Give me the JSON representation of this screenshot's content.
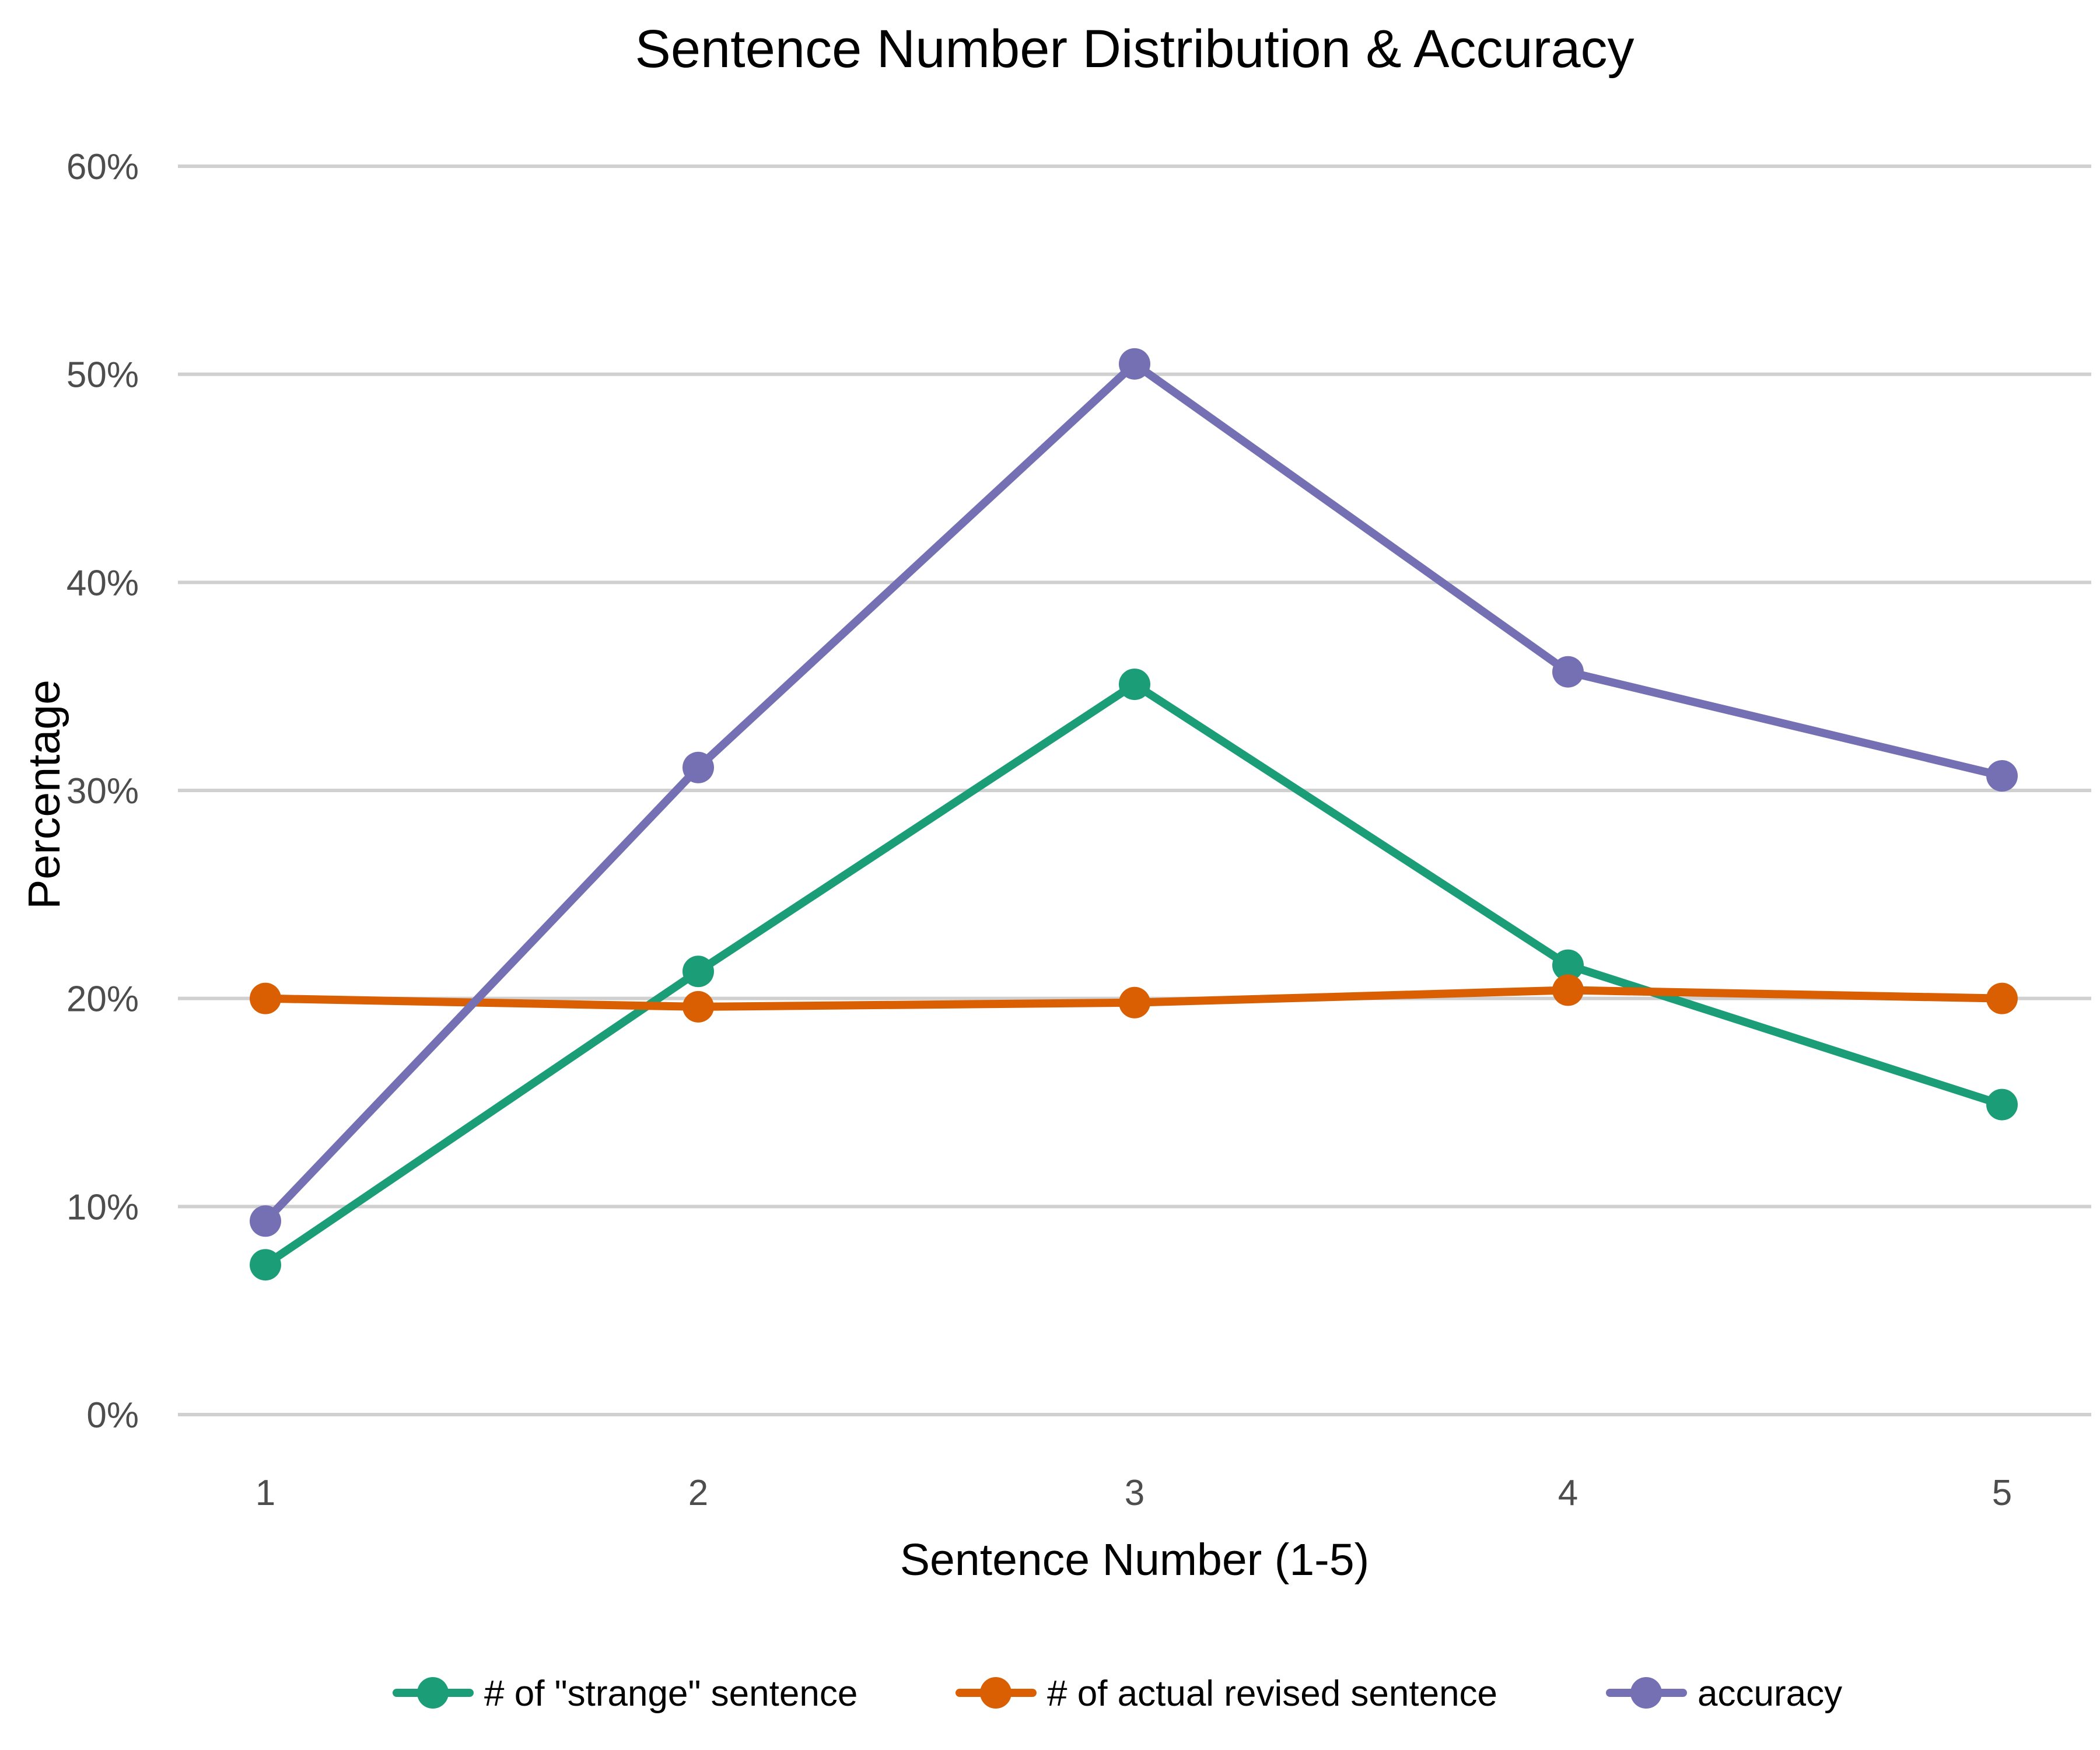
{
  "chart_data": {
    "type": "line",
    "title": "Sentence Number Distribution & Accuracy",
    "xlabel": "Sentence Number (1-5)",
    "ylabel": "Percentage",
    "x": [
      1,
      2,
      3,
      4,
      5
    ],
    "x_tick_labels": [
      "1",
      "2",
      "3",
      "4",
      "5"
    ],
    "ylim": [
      0,
      0.6
    ],
    "y_ticks": [
      0,
      0.1,
      0.2,
      0.3,
      0.4,
      0.5,
      0.6
    ],
    "y_tick_labels": [
      "0%",
      "10%",
      "20%",
      "30%",
      "40%",
      "50%",
      "60%"
    ],
    "grid": "horizontal",
    "legend_position": "bottom",
    "series": [
      {
        "name": "# of \"strange\" sentence",
        "color": "#1b9e77",
        "values": [
          0.072,
          0.213,
          0.351,
          0.216,
          0.149
        ]
      },
      {
        "name": "# of actual revised sentence",
        "color": "#d95f02",
        "values": [
          0.2,
          0.196,
          0.198,
          0.204,
          0.2
        ]
      },
      {
        "name": "accuracy",
        "color": "#7570b3",
        "values": [
          0.093,
          0.311,
          0.505,
          0.357,
          0.307
        ]
      }
    ]
  }
}
